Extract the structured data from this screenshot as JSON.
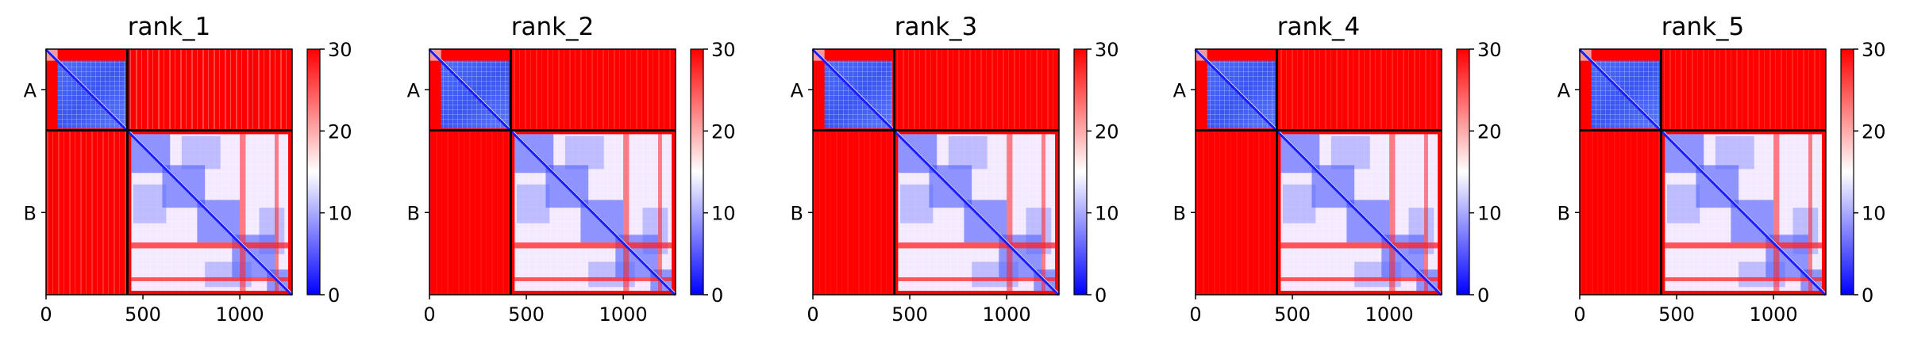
{
  "chart_data": {
    "type": "heatmap",
    "panels": [
      {
        "title": "rank_1"
      },
      {
        "title": "rank_2"
      },
      {
        "title": "rank_3"
      },
      {
        "title": "rank_4"
      },
      {
        "title": "rank_5"
      }
    ],
    "x_ticks": [
      {
        "value": 0,
        "label": "0"
      },
      {
        "value": 500,
        "label": "500"
      },
      {
        "value": 1000,
        "label": "1000"
      }
    ],
    "x_range": [
      0,
      1270
    ],
    "y_range": [
      0,
      1270
    ],
    "chains": [
      {
        "label": "A",
        "start": 0,
        "end": 420
      },
      {
        "label": "B",
        "start": 420,
        "end": 1270
      }
    ],
    "colorbar": {
      "range": [
        0,
        30
      ],
      "ticks": [
        {
          "value": 0,
          "label": "0"
        },
        {
          "value": 10,
          "label": "10"
        },
        {
          "value": 20,
          "label": "20"
        },
        {
          "value": 30,
          "label": "30"
        }
      ],
      "colors": [
        "#0000ff",
        "#ffffff",
        "#ff0000"
      ]
    },
    "colors": {
      "low": "#0000ff",
      "mid": "#ffffff",
      "high": "#ff0000",
      "boundary": "#000000"
    }
  }
}
